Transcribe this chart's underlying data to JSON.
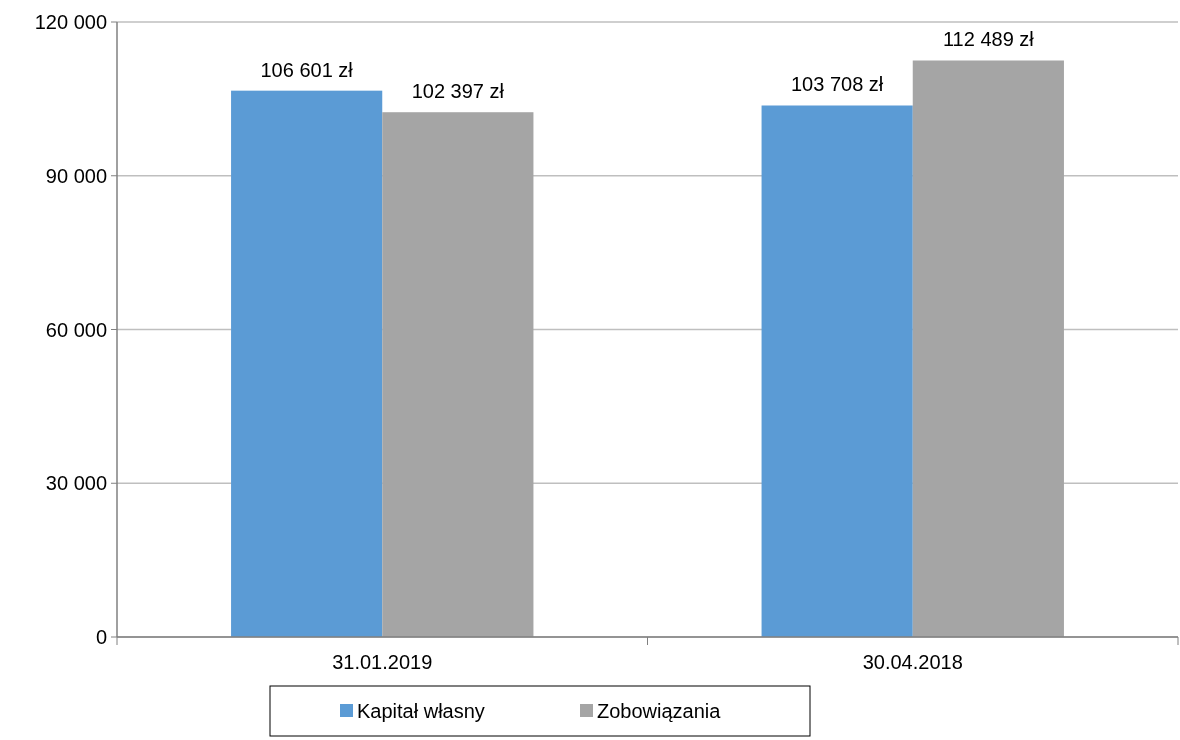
{
  "chart_data": {
    "type": "bar",
    "categories": [
      "31.01.2019",
      "30.04.2018"
    ],
    "series": [
      {
        "name": "Kapitał własny",
        "color": "#5b9bd5",
        "values": [
          106601,
          103708
        ],
        "value_labels": [
          "106 601 zł",
          "103 708 zł"
        ]
      },
      {
        "name": "Zobowiązania",
        "color": "#a5a5a5",
        "values": [
          102397,
          112489
        ],
        "value_labels": [
          "102 397 zł",
          "112 489 zł"
        ]
      }
    ],
    "ylim": [
      0,
      120000
    ],
    "yticks": [
      {
        "value": 0,
        "label": "0"
      },
      {
        "value": 30000,
        "label": "30 000"
      },
      {
        "value": 60000,
        "label": "60 000"
      },
      {
        "value": 90000,
        "label": "90 000"
      },
      {
        "value": 120000,
        "label": "120 000"
      }
    ],
    "grid": "y",
    "legend": "bottom"
  }
}
